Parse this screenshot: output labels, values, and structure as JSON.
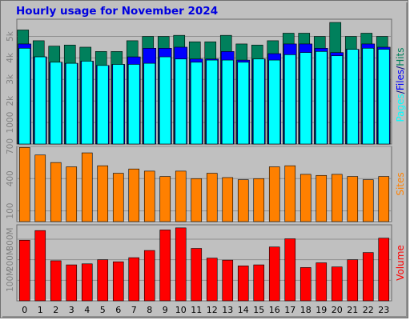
{
  "title": "Hourly usage for November 2024",
  "colors": {
    "hits": "#00805c",
    "files": "#0000ff",
    "pages": "#00ffff",
    "sites": "#ff8000",
    "volume": "#ff0000",
    "background": "#c0c0c0",
    "gridline": "#909090",
    "axis_text": "#808080"
  },
  "chart_data": [
    {
      "type": "bar",
      "title": "Hourly usage for November 2024",
      "categories": [
        "0",
        "1",
        "2",
        "3",
        "4",
        "5",
        "6",
        "7",
        "8",
        "9",
        "10",
        "11",
        "12",
        "13",
        "14",
        "15",
        "16",
        "17",
        "18",
        "19",
        "20",
        "21",
        "22",
        "23"
      ],
      "ylabel_parts": [
        "Pages",
        "Files",
        "Hits"
      ],
      "yticks": [
        "1000",
        "2k",
        "3k",
        "4k",
        "5k"
      ],
      "ylim": [
        0,
        5800
      ],
      "grid": true,
      "series": [
        {
          "name": "Hits",
          "values": [
            5300,
            4800,
            4550,
            4600,
            4500,
            4300,
            4300,
            4800,
            5000,
            5000,
            5050,
            4750,
            4750,
            5050,
            4650,
            4600,
            4800,
            5150,
            5150,
            5000,
            5650,
            5000,
            5150,
            5000
          ]
        },
        {
          "name": "Files",
          "values": [
            4650,
            4050,
            3800,
            3750,
            3850,
            3650,
            3700,
            4050,
            4450,
            4450,
            4500,
            3950,
            3950,
            4300,
            3900,
            3950,
            4200,
            4650,
            4650,
            4450,
            4250,
            4400,
            4650,
            4500
          ]
        },
        {
          "name": "Pages",
          "values": [
            4450,
            4050,
            3800,
            3750,
            3850,
            3650,
            3700,
            3700,
            3750,
            4050,
            3950,
            3800,
            3900,
            3900,
            3800,
            3950,
            3900,
            4150,
            4250,
            4300,
            4100,
            4400,
            4450,
            4400
          ]
        }
      ]
    },
    {
      "type": "bar",
      "categories": [
        "0",
        "1",
        "2",
        "3",
        "4",
        "5",
        "6",
        "7",
        "8",
        "9",
        "10",
        "11",
        "12",
        "13",
        "14",
        "15",
        "16",
        "17",
        "18",
        "19",
        "20",
        "21",
        "22",
        "23"
      ],
      "ylabel": "Sites",
      "yticks": [
        "100",
        "400",
        "700"
      ],
      "ylim": [
        0,
        700
      ],
      "grid": true,
      "series": [
        {
          "name": "Sites",
          "values": [
            690,
            620,
            550,
            510,
            640,
            520,
            450,
            490,
            470,
            420,
            470,
            400,
            450,
            410,
            390,
            400,
            510,
            520,
            440,
            430,
            440,
            420,
            390,
            420
          ]
        }
      ]
    },
    {
      "type": "bar",
      "categories": [
        "0",
        "1",
        "2",
        "3",
        "4",
        "5",
        "6",
        "7",
        "8",
        "9",
        "10",
        "11",
        "12",
        "13",
        "14",
        "15",
        "16",
        "17",
        "18",
        "19",
        "20",
        "21",
        "22",
        "23"
      ],
      "ylabel": "Volume",
      "yticks": [
        "100M",
        "200M",
        "300M"
      ],
      "ylim": [
        0,
        370
      ],
      "grid": true,
      "series": [
        {
          "name": "Volume",
          "values": [
            295,
            342,
            195,
            175,
            180,
            200,
            190,
            210,
            245,
            345,
            355,
            255,
            208,
            198,
            170,
            175,
            262,
            302,
            162,
            185,
            165,
            200,
            235,
            305
          ]
        }
      ]
    }
  ]
}
